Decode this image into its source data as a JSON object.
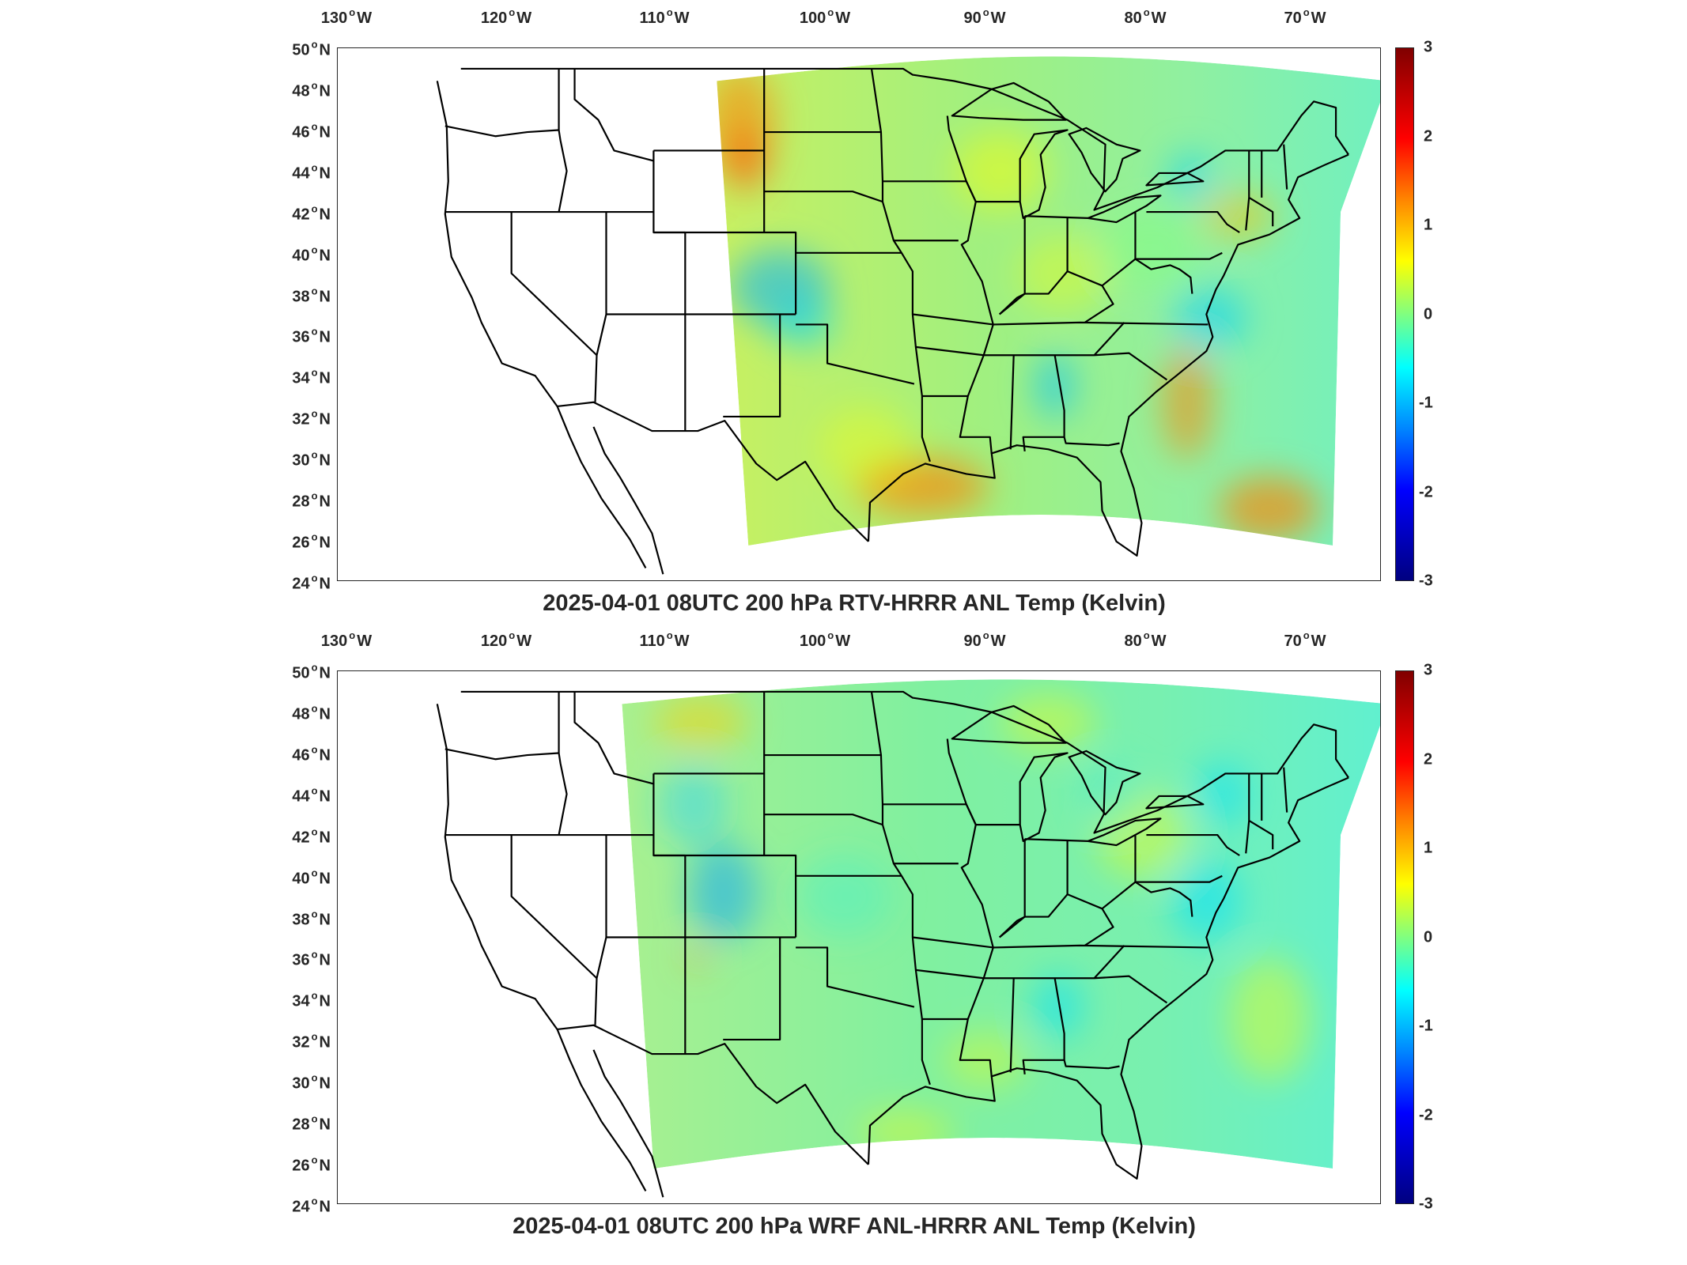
{
  "panels": [
    {
      "title": "2025-04-01 08UTC 200 hPa RTV-HRRR ANL Temp (Kelvin)",
      "lon_labels": [
        "130",
        "120",
        "110",
        "100",
        "90",
        "80",
        "70"
      ],
      "lon_suffix": "W",
      "lat_labels": [
        "50",
        "48",
        "46",
        "44",
        "42",
        "40",
        "38",
        "36",
        "34",
        "32",
        "30",
        "28",
        "26",
        "24"
      ],
      "lat_suffix": "N",
      "colorbar_ticks": [
        "3",
        "2",
        "1",
        "0",
        "-1",
        "-2",
        "-3"
      ],
      "domain_west_edge_lon": -107,
      "field_tone": "warm"
    },
    {
      "title": "2025-04-01 08UTC 200 hPa WRF ANL-HRRR ANL Temp (Kelvin)",
      "lon_labels": [
        "130",
        "120",
        "110",
        "100",
        "90",
        "80",
        "70"
      ],
      "lon_suffix": "W",
      "lat_labels": [
        "50",
        "48",
        "46",
        "44",
        "42",
        "40",
        "38",
        "36",
        "34",
        "32",
        "30",
        "28",
        "26",
        "24"
      ],
      "lat_suffix": "N",
      "colorbar_ticks": [
        "3",
        "2",
        "1",
        "0",
        "-1",
        "-2",
        "-3"
      ],
      "domain_west_edge_lon": -113,
      "field_tone": "cool"
    }
  ],
  "colormap": [
    "#000080",
    "#0000ff",
    "#0080ff",
    "#00ffff",
    "#80ff80",
    "#ffff00",
    "#ff8000",
    "#ff0000",
    "#800000"
  ],
  "colorbar_range": [
    -3,
    3
  ]
}
